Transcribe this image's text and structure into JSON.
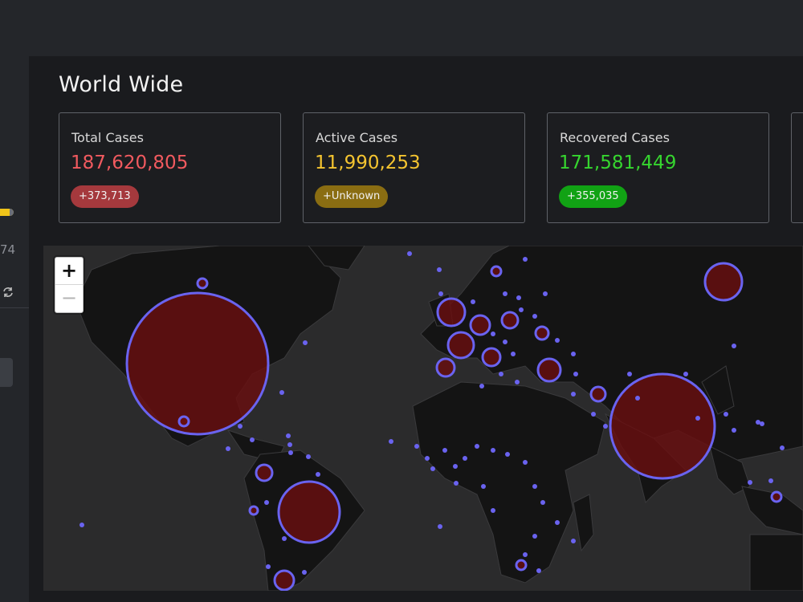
{
  "sidebar": {
    "partial_number": "74",
    "refresh_icon": "refresh-icon"
  },
  "page": {
    "title": "World Wide"
  },
  "cards": [
    {
      "label": "Total Cases",
      "value": "187,620,805",
      "badge": "+373,713",
      "value_color": "#f15a5f",
      "badge_color": "#a5393d"
    },
    {
      "label": "Active Cases",
      "value": "11,990,253",
      "badge": "+Unknown",
      "value_color": "#f4c430",
      "badge_color": "#8a6d12"
    },
    {
      "label": "Recovered Cases",
      "value": "171,581,449",
      "badge": "+355,035",
      "value_color": "#36d62f",
      "badge_color": "#11a214"
    }
  ],
  "map": {
    "zoom_in_label": "+",
    "zoom_out_label": "−",
    "bubble_stroke_color": "#6a63f0",
    "bubble_fill_color": "#6a0e0f",
    "land_color": "#141414",
    "sea_color": "#2b2b2c"
  }
}
